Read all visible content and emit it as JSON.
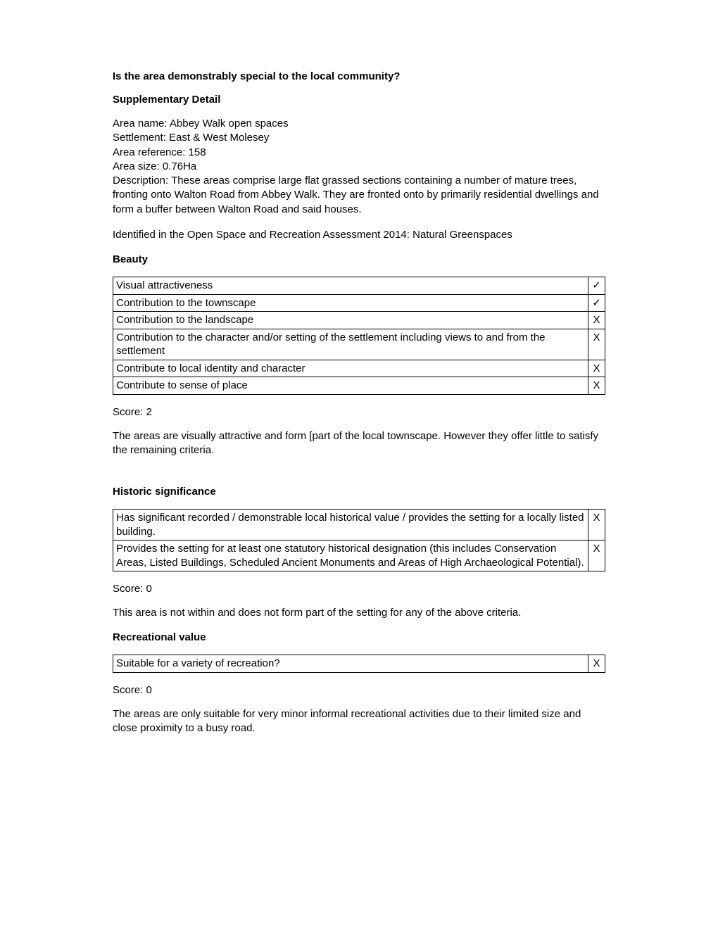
{
  "title": "Is the area demonstrably special to the local community?",
  "supplementary": {
    "heading": "Supplementary Detail",
    "area_name_label": "Area name: ",
    "area_name": "Abbey Walk open spaces",
    "settlement_label": "Settlement: ",
    "settlement": "East & West Molesey",
    "area_ref_label": "Area reference: ",
    "area_ref": "158",
    "area_size_label": "Area size: ",
    "area_size": "0.76Ha",
    "description_label": "Description: ",
    "description": "These areas comprise large flat grassed sections containing a number of mature trees, fronting onto Walton Road from Abbey Walk. They are fronted onto by primarily residential dwellings and form a buffer between Walton Road and said houses.",
    "identified": "Identified in the Open Space and Recreation Assessment 2014: Natural Greenspaces"
  },
  "beauty": {
    "heading": "Beauty",
    "rows": [
      {
        "label": "Visual attractiveness",
        "mark": "✓"
      },
      {
        "label": "Contribution to the townscape",
        "mark": "✓"
      },
      {
        "label": "Contribution to the landscape",
        "mark": "X"
      },
      {
        "label": "Contribution to the character and/or setting of the settlement including views to and from the settlement",
        "mark": "X"
      },
      {
        "label": "Contribute to local identity and character",
        "mark": "X"
      },
      {
        "label": "Contribute to sense of place",
        "mark": "X"
      }
    ],
    "score_label": "Score: 2",
    "commentary": "The areas are visually attractive and form [part of the local townscape. However they offer little to satisfy the remaining criteria."
  },
  "historic": {
    "heading": "Historic significance",
    "rows": [
      {
        "label": "Has significant recorded / demonstrable local historical value / provides the setting for a locally listed building.",
        "mark": "X"
      },
      {
        "label": "Provides the setting for at least one statutory historical designation (this includes Conservation Areas, Listed Buildings, Scheduled Ancient Monuments and Areas of High Archaeological Potential).",
        "mark": "X"
      }
    ],
    "score_label": "Score: 0",
    "commentary": "This area is not within and does not form part of the setting for any of the above criteria."
  },
  "recreational": {
    "heading": "Recreational value",
    "rows": [
      {
        "label": "Suitable for a variety of recreation?",
        "mark": "X"
      }
    ],
    "score_label": "Score: 0",
    "commentary": "The areas are only suitable for very minor informal recreational activities due to their limited size and close proximity to a busy road."
  }
}
